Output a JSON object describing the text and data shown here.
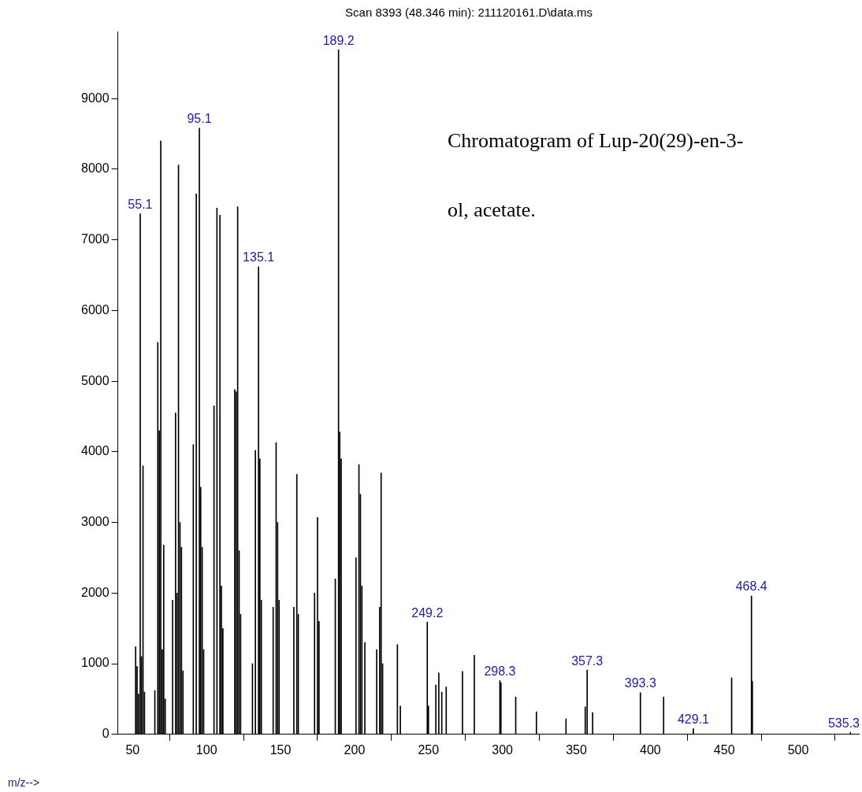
{
  "chart_data": {
    "type": "bar",
    "title": "Scan 8393 (48.346 min): 211120161.D\\data.ms",
    "xlabel": "m/z-->",
    "x": [
      52,
      53,
      54,
      55.1,
      56,
      57,
      58,
      65,
      67,
      68,
      69,
      70,
      71,
      72,
      77,
      79,
      80,
      81,
      82,
      83,
      84,
      91,
      93,
      95.1,
      96,
      97,
      98,
      105,
      107,
      109,
      110,
      111,
      119,
      120,
      121,
      122,
      123,
      131,
      133,
      135.1,
      136,
      137,
      145,
      147,
      148,
      149,
      159,
      161,
      162,
      173,
      175,
      176,
      187,
      189.2,
      190,
      191,
      201,
      203,
      204,
      205,
      207,
      215,
      217,
      218,
      219,
      229,
      231,
      249.2,
      250,
      255,
      257,
      259,
      262,
      273,
      281,
      298.3,
      299,
      309,
      323,
      343,
      356,
      357.3,
      361,
      393.3,
      409,
      429.1,
      455,
      468.4,
      469,
      535.3
    ],
    "values": [
      1240,
      960,
      570,
      7370,
      1100,
      3800,
      600,
      620,
      5550,
      4300,
      8400,
      1200,
      2680,
      500,
      1900,
      4550,
      2000,
      8060,
      3000,
      2650,
      900,
      4100,
      7650,
      8580,
      3500,
      2650,
      1200,
      4650,
      7450,
      7350,
      2100,
      1500,
      4880,
      4850,
      7470,
      2600,
      1700,
      1000,
      4020,
      6620,
      3900,
      1900,
      1800,
      4130,
      3000,
      1900,
      1800,
      3680,
      1700,
      2000,
      3070,
      1600,
      2200,
      9690,
      4280,
      3900,
      2500,
      3820,
      3400,
      2100,
      1300,
      1200,
      1800,
      3700,
      1000,
      1270,
      400,
      1590,
      400,
      700,
      870,
      600,
      670,
      890,
      1120,
      760,
      730,
      530,
      320,
      220,
      390,
      910,
      310,
      590,
      530,
      80,
      800,
      1960,
      750,
      30
    ],
    "color": "#000000",
    "xlim": [
      40,
      541
    ],
    "xticks": [
      50,
      100,
      150,
      200,
      250,
      300,
      350,
      400,
      450,
      500
    ],
    "ylim": [
      0,
      9950
    ],
    "yticks": [
      0,
      1000,
      2000,
      3000,
      4000,
      5000,
      6000,
      7000,
      8000,
      9000
    ],
    "grid": false,
    "legend": false,
    "annotations": [
      {
        "text": "55.1",
        "x": 55.1,
        "y": 7370
      },
      {
        "text": "95.1",
        "x": 95.1,
        "y": 8580
      },
      {
        "text": "135.1",
        "x": 135.1,
        "y": 6620
      },
      {
        "text": "189.2",
        "x": 189.2,
        "y": 9690
      },
      {
        "text": "249.2",
        "x": 249.2,
        "y": 1590
      },
      {
        "text": "298.3",
        "x": 298.3,
        "y": 760
      },
      {
        "text": "357.3",
        "x": 357.3,
        "y": 910
      },
      {
        "text": "393.3",
        "x": 393.3,
        "y": 590
      },
      {
        "text": "429.1",
        "x": 429.1,
        "y": 80
      },
      {
        "text": "468.4",
        "x": 468.4,
        "y": 1960
      },
      {
        "text": "535.3",
        "x": 535.3,
        "y": 30
      },
      "Chromatogram of Lup-20(29)-en-3-ol, acetate."
    ]
  }
}
